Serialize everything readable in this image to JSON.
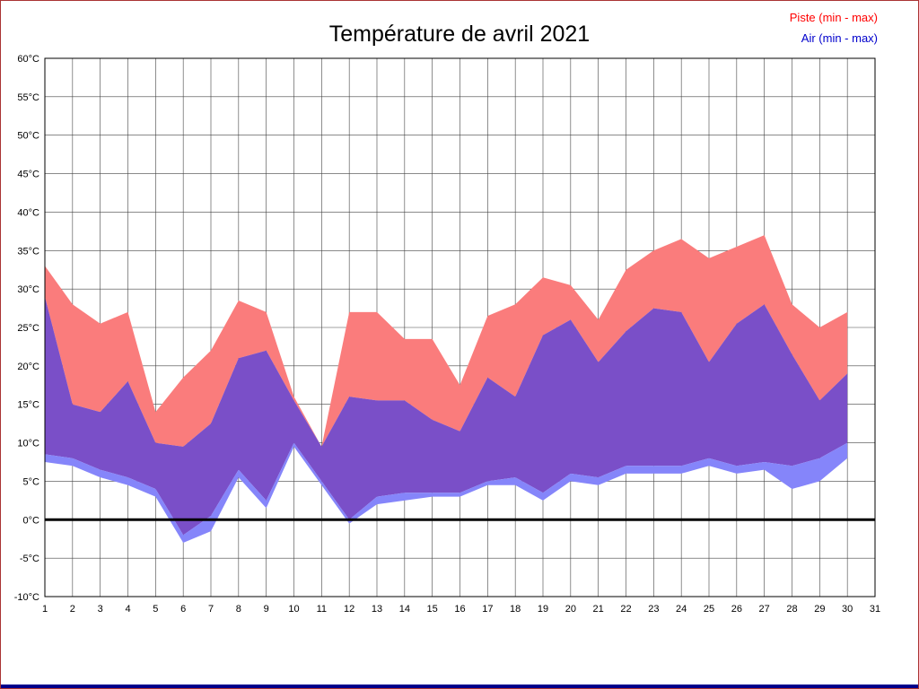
{
  "page": {
    "border_color": "#aa3333",
    "bottom_bar_color": "#00008B"
  },
  "chart_data": {
    "type": "area",
    "title": "Température de avril 2021",
    "legend": {
      "position": "top-right",
      "piste": "Piste (min - max)",
      "air": "Air (min - max)",
      "piste_color": "#FF0000",
      "air_color": "#0000CC"
    },
    "xlabel": "",
    "ylabel": "",
    "xlim": [
      1,
      31
    ],
    "ylim": [
      -10,
      60
    ],
    "grid": true,
    "x": [
      1,
      2,
      3,
      4,
      5,
      6,
      7,
      8,
      9,
      10,
      11,
      12,
      13,
      14,
      15,
      16,
      17,
      18,
      19,
      20,
      21,
      22,
      23,
      24,
      25,
      26,
      27,
      28,
      29,
      30
    ],
    "x_axis_ticks": [
      1,
      2,
      3,
      4,
      5,
      6,
      7,
      8,
      9,
      10,
      11,
      12,
      13,
      14,
      15,
      16,
      17,
      18,
      19,
      20,
      21,
      22,
      23,
      24,
      25,
      26,
      27,
      28,
      29,
      30,
      31
    ],
    "y_axis_ticks": [
      "60°C",
      "55°C",
      "50°C",
      "45°C",
      "40°C",
      "35°C",
      "30°C",
      "25°C",
      "20°C",
      "15°C",
      "10°C",
      "5°C",
      "0°C",
      "-5°C",
      "-10°C"
    ],
    "y_axis_tick_values": [
      60,
      55,
      50,
      45,
      40,
      35,
      30,
      25,
      20,
      15,
      10,
      5,
      0,
      -5,
      -10
    ],
    "series": [
      {
        "name": "Piste max",
        "values": [
          33,
          28,
          25.5,
          27,
          14,
          18.5,
          22,
          28.5,
          27,
          16,
          9.5,
          27,
          27,
          23.5,
          23.5,
          17.5,
          26.5,
          28,
          31.5,
          30.5,
          26,
          32.5,
          35,
          36.5,
          34,
          35.5,
          37,
          28,
          25,
          27
        ]
      },
      {
        "name": "Air max",
        "values": [
          29,
          15,
          14,
          18,
          10,
          9.5,
          12.5,
          21,
          22,
          15.5,
          9.5,
          16,
          15.5,
          15.5,
          13,
          11.5,
          18.5,
          16,
          24,
          26,
          20.5,
          24.5,
          27.5,
          27,
          20.5,
          25.5,
          28,
          21.5,
          15.5,
          19
        ]
      },
      {
        "name": "Piste min",
        "values": [
          8.5,
          8,
          6.5,
          5.5,
          4,
          -2,
          0.5,
          6.5,
          2.5,
          10,
          5,
          0,
          3,
          3.5,
          3.5,
          3.5,
          5,
          5.5,
          3.5,
          6,
          5.5,
          7,
          7,
          7,
          8,
          7,
          7.5,
          7,
          8,
          10
        ]
      },
      {
        "name": "Air min",
        "values": [
          7.5,
          7,
          5.5,
          4.5,
          3,
          -3,
          -1.5,
          5.5,
          1.5,
          9.5,
          4.5,
          -0.5,
          2,
          2.5,
          3,
          3,
          4.5,
          4.5,
          2.5,
          5,
          4.5,
          6,
          6,
          6,
          7,
          6,
          6.5,
          4,
          5,
          8
        ]
      }
    ],
    "colors": {
      "piste_band": "#FA7C7C",
      "air_band": "#8585FA",
      "overlap_band": "#7A4FC8",
      "zero_line": "#000000",
      "grid_line": "#444444",
      "plot_border": "#000000"
    }
  }
}
